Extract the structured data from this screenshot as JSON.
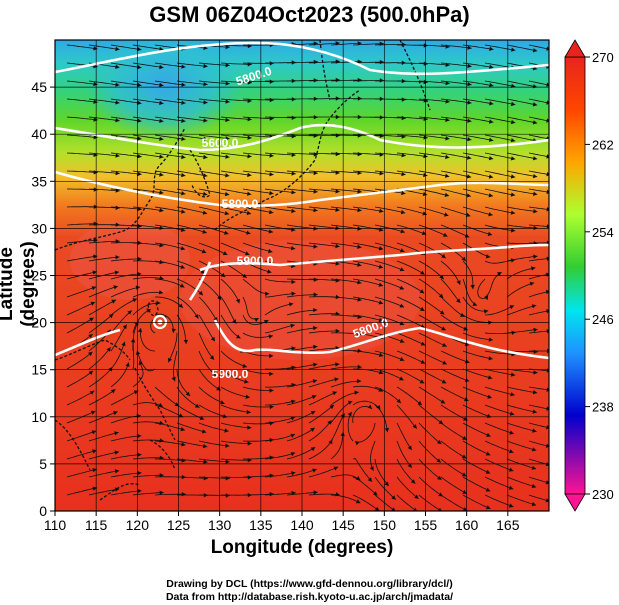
{
  "title": "GSM 06Z04Oct2023 (500.0hPa)",
  "x_axis": {
    "label": "Longitude (degrees)",
    "ticks": [
      "110",
      "115",
      "120",
      "125",
      "130",
      "135",
      "140",
      "145",
      "150",
      "155",
      "160",
      "165"
    ]
  },
  "y_axis": {
    "label": "Latitude  (degrees)",
    "ticks": [
      "0",
      "5",
      "10",
      "15",
      "20",
      "25",
      "30",
      "35",
      "40",
      "45"
    ]
  },
  "colorbar": {
    "ticks": [
      "270",
      "262",
      "254",
      "246",
      "238",
      "230"
    ],
    "colors": [
      "#ff1493",
      "#0000cd",
      "#1e90ff",
      "#00e5ee",
      "#32cd32",
      "#adff2f",
      "#ffa500",
      "#ff4500",
      "#e8251c"
    ]
  },
  "contour_labels": [
    "5800.0",
    "5600.0",
    "5800.0",
    "5900.0",
    "5900.0",
    "5800.0"
  ],
  "credits": {
    "line1": "Drawing by DCL (https://www.gfd-dennou.org/library/dcl/)",
    "line2": "Data from http://database.rish.kyoto-u.ac.jp/arch/jmadata/"
  },
  "map": {
    "lon_range": [
      110,
      170
    ],
    "lat_range": [
      0,
      50
    ]
  }
}
